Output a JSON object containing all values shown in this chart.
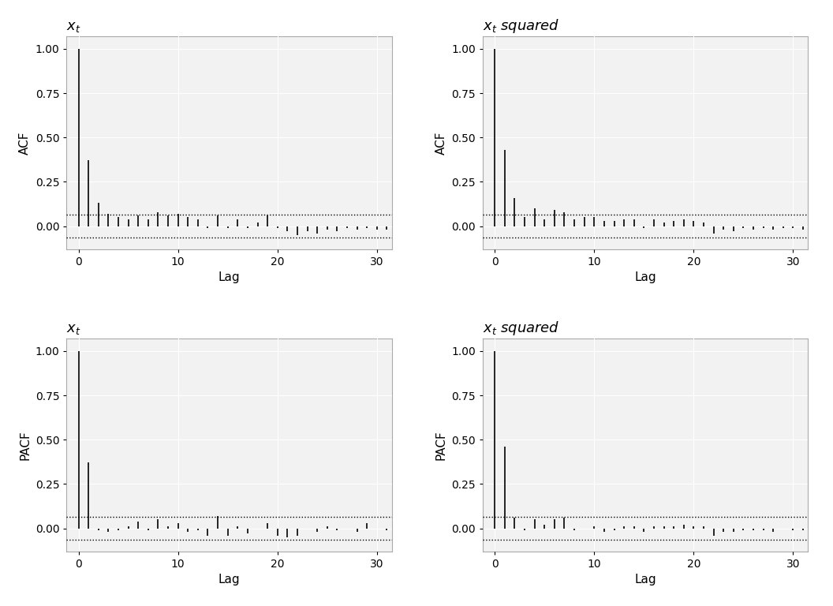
{
  "acf_xt": [
    1.0,
    0.37,
    0.13,
    0.07,
    0.05,
    0.04,
    0.06,
    0.04,
    0.08,
    0.06,
    0.07,
    0.05,
    0.04,
    -0.01,
    0.06,
    -0.01,
    0.04,
    -0.01,
    0.02,
    0.06,
    -0.01,
    -0.03,
    -0.05,
    -0.03,
    -0.04,
    -0.02,
    -0.03,
    -0.01,
    -0.02,
    -0.01,
    -0.02,
    -0.02
  ],
  "acf_xt2": [
    1.0,
    0.43,
    0.16,
    0.05,
    0.1,
    0.04,
    0.09,
    0.08,
    0.04,
    0.05,
    0.05,
    0.03,
    0.03,
    0.04,
    0.04,
    -0.01,
    0.04,
    0.02,
    0.03,
    0.04,
    0.03,
    0.02,
    -0.04,
    -0.02,
    -0.03,
    -0.01,
    -0.02,
    -0.01,
    -0.02,
    -0.01,
    -0.01,
    -0.02
  ],
  "pacf_xt": [
    1.0,
    0.37,
    -0.01,
    -0.02,
    -0.01,
    0.01,
    0.04,
    -0.01,
    0.05,
    0.01,
    0.03,
    -0.02,
    -0.01,
    -0.04,
    0.07,
    -0.04,
    0.01,
    -0.03,
    0.0,
    0.03,
    -0.04,
    -0.05,
    -0.04,
    0.0,
    -0.02,
    0.01,
    -0.01,
    0.0,
    -0.02,
    0.03,
    0.0,
    -0.01
  ],
  "pacf_xt2": [
    1.0,
    0.46,
    0.06,
    -0.01,
    0.05,
    0.02,
    0.05,
    0.06,
    -0.01,
    0.0,
    0.01,
    -0.02,
    -0.01,
    0.01,
    0.01,
    -0.02,
    0.01,
    0.01,
    0.01,
    0.02,
    0.01,
    0.01,
    -0.04,
    -0.02,
    -0.02,
    -0.01,
    -0.01,
    -0.01,
    -0.02,
    0.0,
    -0.01,
    -0.01
  ],
  "ci": 0.065,
  "ylim_acf": [
    -0.13,
    1.07
  ],
  "ylim_pacf": [
    -0.13,
    1.07
  ],
  "xlim": [
    -1.2,
    31.5
  ],
  "yticks": [
    0.0,
    0.25,
    0.5,
    0.75,
    1.0
  ],
  "xticks": [
    0,
    10,
    20,
    30
  ],
  "titles": [
    "x_t",
    "x_t squared",
    "x_t",
    "x_t squared"
  ],
  "ylabels": [
    "ACF",
    "ACF",
    "PACF",
    "PACF"
  ],
  "xlabel": "Lag",
  "bar_color": "#000000",
  "ci_color": "#000000",
  "bg_color": "#f2f2f2",
  "grid_color": "#ffffff",
  "fig_color": "#ffffff",
  "title_fontsize": 13,
  "label_fontsize": 11,
  "tick_fontsize": 10
}
